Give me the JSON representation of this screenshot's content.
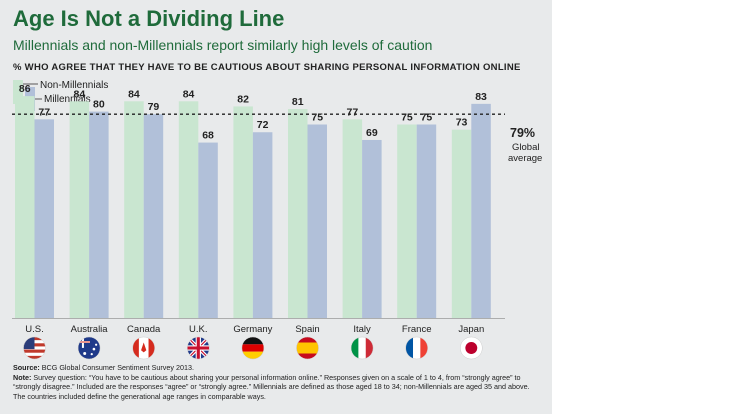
{
  "header": {
    "title": "Age Is Not a Dividing Line",
    "subtitle": "Millennials and non-Millennials report similarly high levels of caution"
  },
  "chart_data": {
    "type": "bar",
    "title": "% WHO AGREE THAT THEY HAVE TO BE CAUTIOUS ABOUT SHARING PERSONAL INFORMATION ONLINE",
    "categories": [
      "U.S.",
      "Australia",
      "Canada",
      "U.K.",
      "Germany",
      "Spain",
      "Italy",
      "France",
      "Japan"
    ],
    "series": [
      {
        "name": "Non-Millennials",
        "color": "#c9e6d0",
        "values": [
          86,
          84,
          84,
          84,
          82,
          81,
          77,
          75,
          73
        ]
      },
      {
        "name": "Millennials",
        "color": "#b1c0d9",
        "values": [
          77,
          80,
          79,
          68,
          72,
          75,
          69,
          75,
          83
        ]
      }
    ],
    "reference_line": {
      "value": 79,
      "label": "79%",
      "sublabel_1": "Global",
      "sublabel_2": "average"
    },
    "ylim": [
      0,
      100
    ],
    "flag_icons": [
      "us-flag-icon",
      "australia-flag-icon",
      "canada-flag-icon",
      "uk-flag-icon",
      "germany-flag-icon",
      "spain-flag-icon",
      "italy-flag-icon",
      "france-flag-icon",
      "japan-flag-icon"
    ]
  },
  "footer": {
    "source_label": "Source:",
    "source_text": "BCG Global Consumer Sentiment Survey 2013.",
    "note_label": "Note:",
    "note_text": "Survey question: “You have to be cautious about sharing your personal information online.” Responses given on a scale of 1 to 4, from “strongly agree” to “strongly disagree.” Included are the responses “agree” or “strongly agree.” Millennials are defined as those aged 18 to 34; non-Millennials are aged 35 and above. The countries included define the generational age ranges in comparable ways."
  }
}
